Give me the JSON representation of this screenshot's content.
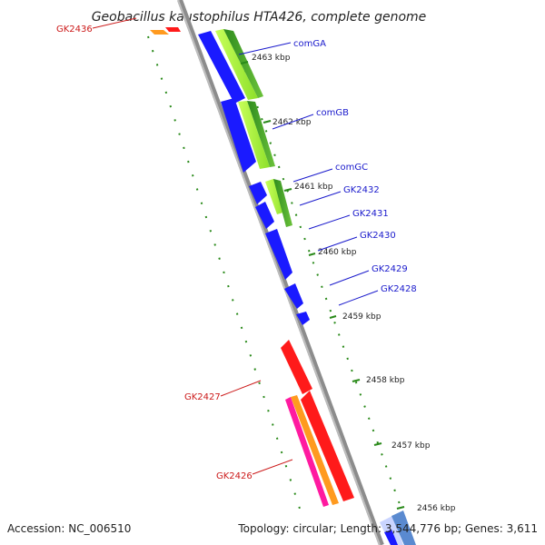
{
  "title": "Geobacillus kaustophilus HTA426, complete genome",
  "footer": {
    "accession": "Accession: NC_006510",
    "summary": "Topology: circular; Length: 3,544,776 bp; Genes: 3,611"
  },
  "ticks": [
    "2463 kbp",
    "2462 kbp",
    "2461 kbp",
    "2460 kbp",
    "2459 kbp",
    "2458 kbp",
    "2457 kbp",
    "2456 kbp"
  ],
  "genes_forward": [
    "comGA",
    "comGB",
    "comGC",
    "GK2432",
    "GK2431",
    "GK2430",
    "GK2429",
    "GK2428"
  ],
  "genes_reverse": [
    "GK2436",
    "GK2427",
    "GK2426"
  ],
  "colors": {
    "backbone": "#8c8c8c",
    "forward_gene": "#1a1aff",
    "reverse_gene": "#ff1a1a",
    "cds_green": "#2e8b1e",
    "cds_lightgreen": "#a6f23a",
    "orange": "#ff9a1f",
    "magenta": "#ff1aa0",
    "tick_green": "#2a8a1a",
    "label_blue": "#1a1acc",
    "label_red": "#cc1a1a"
  }
}
